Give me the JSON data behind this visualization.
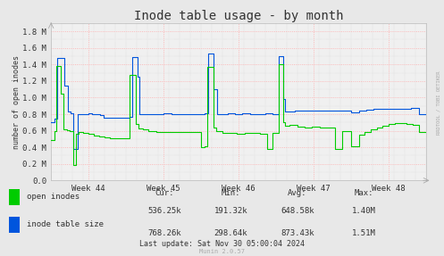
{
  "title": "Inode table usage - by month",
  "ylabel": "number of open inodes",
  "bg_color": "#e8e8e8",
  "plot_bg_color": "#f0f0f0",
  "ylim": [
    0,
    1900000
  ],
  "yticks": [
    0,
    200000,
    400000,
    600000,
    800000,
    1000000,
    1200000,
    1400000,
    1600000,
    1800000
  ],
  "ytick_labels": [
    "0.0",
    "0.2 M",
    "0.4 M",
    "0.6 M",
    "0.8 M",
    "1.0 M",
    "1.2 M",
    "1.4 M",
    "1.6 M",
    "1.8 M"
  ],
  "week_labels": [
    "Week 44",
    "Week 45",
    "Week 46",
    "Week 47",
    "Week 48"
  ],
  "legend_entries": [
    "open inodes",
    "inode table size"
  ],
  "legend_colors": [
    "#00cc00",
    "#0055dd"
  ],
  "stats_cur": [
    "536.25k",
    "768.26k"
  ],
  "stats_min": [
    "191.32k",
    "298.64k"
  ],
  "stats_avg": [
    "648.58k",
    "873.43k"
  ],
  "stats_max": [
    "1.40M",
    "1.51M"
  ],
  "last_update": "Last update: Sat Nov 30 05:00:04 2024",
  "munin_label": "Munin 2.0.57",
  "watermark": "RRDTOOL / TOBI OETIKER",
  "title_fontsize": 10,
  "tick_fontsize": 6.5,
  "legend_fontsize": 6.5,
  "stats_fontsize": 6.5
}
